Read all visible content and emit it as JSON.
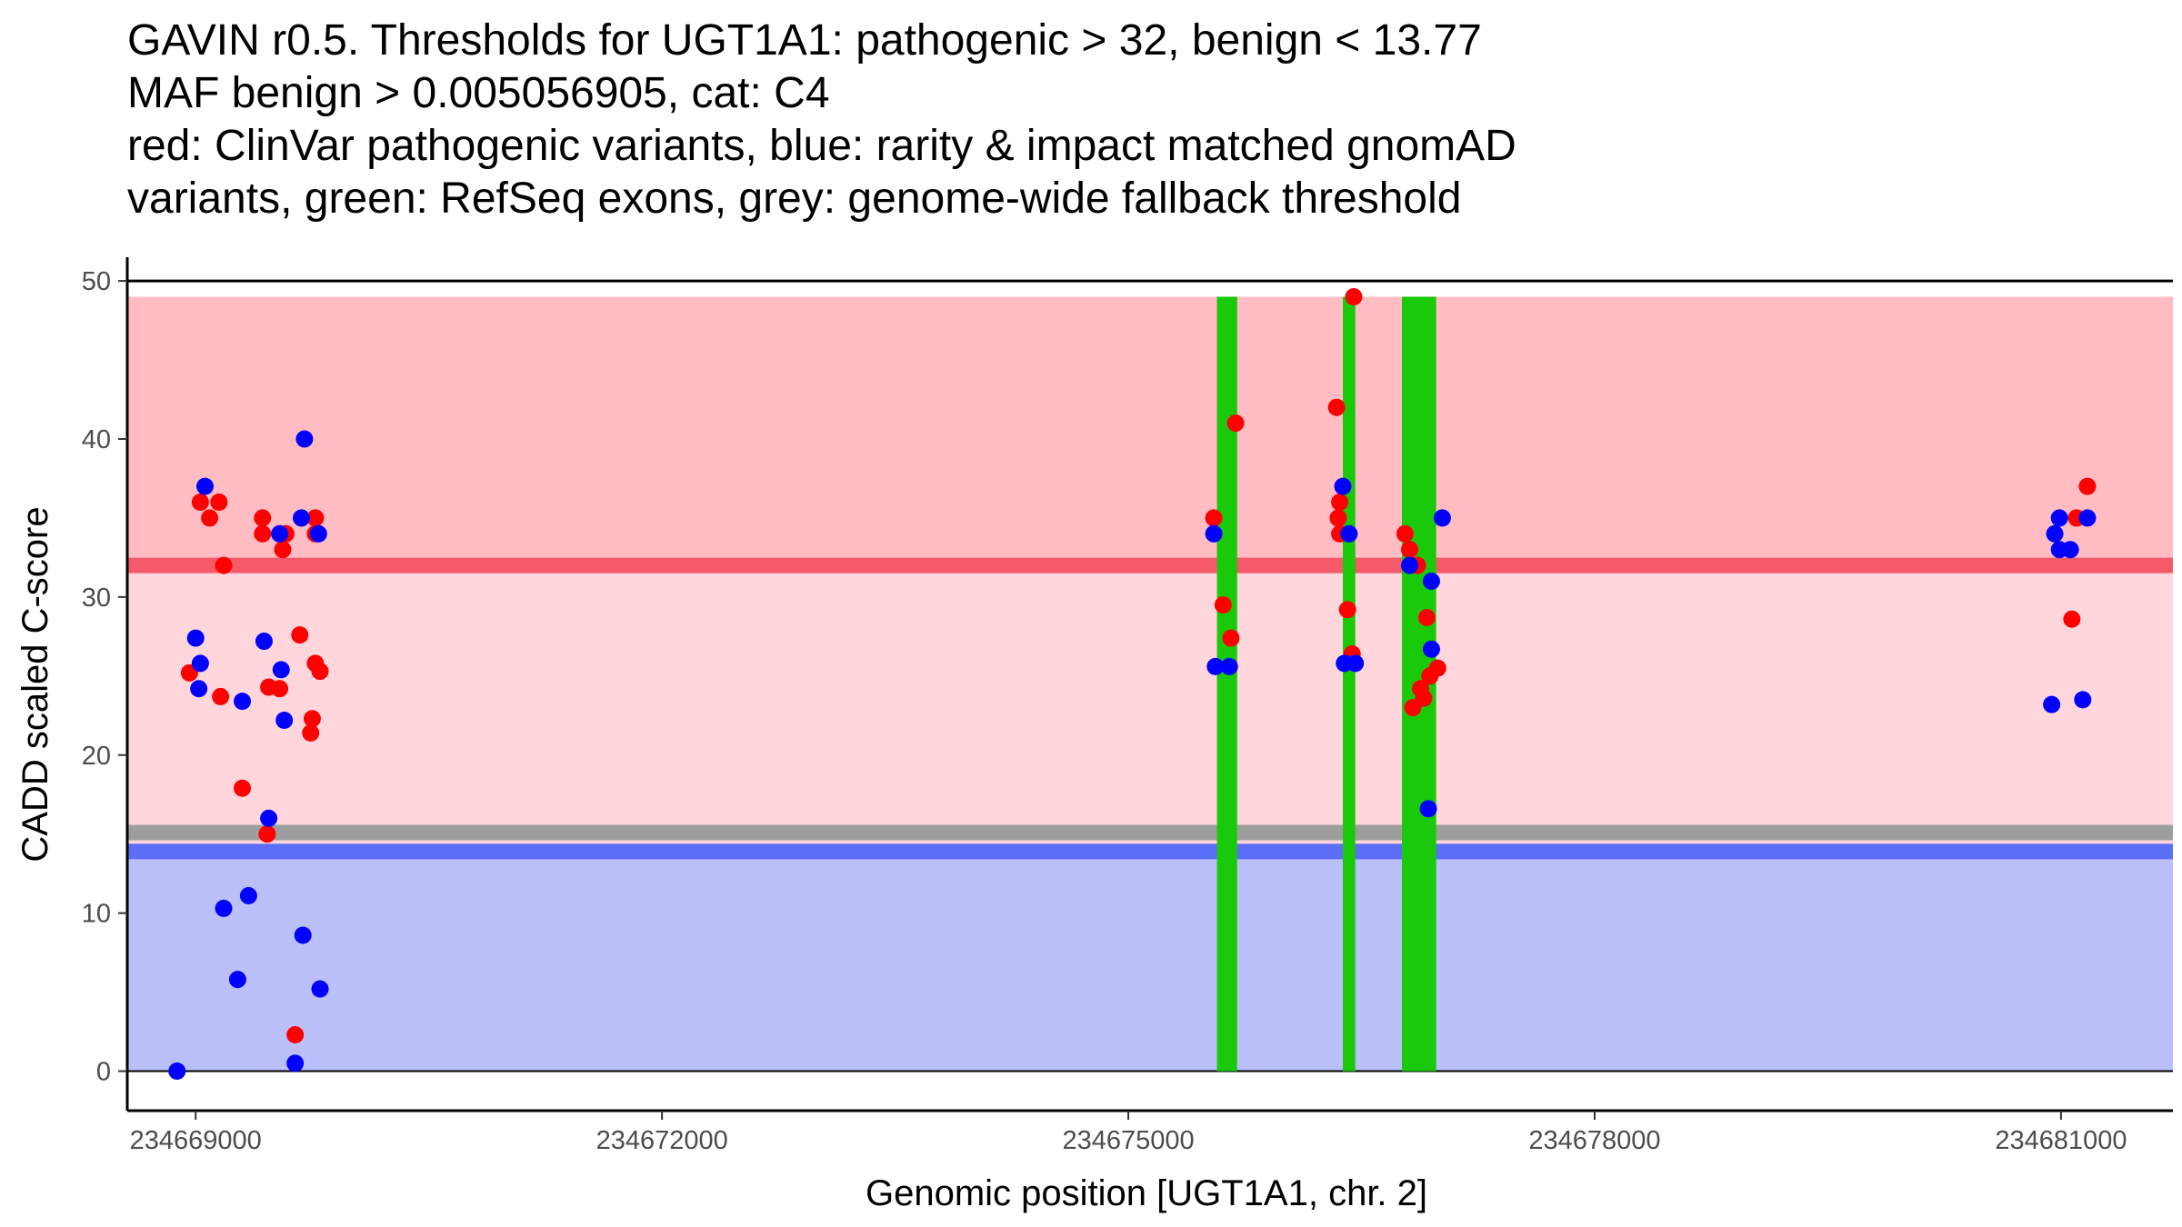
{
  "chart_data": {
    "type": "scatter",
    "title_lines": [
      "GAVIN r0.5. Thresholds for UGT1A1: pathogenic > 32, benign < 13.77",
      "MAF benign > 0.005056905, cat: C4",
      "red: ClinVar pathogenic variants, blue: rarity & impact matched gnomAD",
      "variants, green: RefSeq exons, grey: genome-wide fallback threshold"
    ],
    "xlabel": "Genomic position [UGT1A1, chr. 2]",
    "ylabel": "CADD scaled C-score",
    "xlim": [
      234668560,
      234681720
    ],
    "ylim": [
      -2.5,
      51.5
    ],
    "x_ticks": [
      234669000,
      234672000,
      234675000,
      234678000,
      234681000
    ],
    "x_tick_labels": [
      "234669000",
      "234672000",
      "234675000",
      "234678000",
      "234681000"
    ],
    "y_ticks": [
      0,
      10,
      20,
      30,
      40,
      50
    ],
    "y_tick_labels": [
      "0",
      "10",
      "20",
      "30",
      "40",
      "50"
    ],
    "colors": {
      "pathogenic_zone": "#ffbcc2",
      "middle_zone": "#ffd6dc",
      "benign_zone": "#bbc0fa",
      "pathogenic_line": "#f55a6b",
      "benign_line": "#5b6ef5",
      "fallback_line": "#9e9e9e",
      "exon": "#1ac90a",
      "clinvar": "#ff0000",
      "gnomad": "#0000ff"
    },
    "zones": {
      "top": 49,
      "pathogenic_threshold": 32,
      "benign_threshold": 13.77,
      "fallback_threshold": 15.1,
      "benign_line_center": 13.9,
      "bottom": 0
    },
    "exons": [
      {
        "start": 234675570,
        "end": 234675700
      },
      {
        "start": 234676380,
        "end": 234676460
      },
      {
        "start": 234676760,
        "end": 234676980
      }
    ],
    "exon_top": 49,
    "series": [
      {
        "name": "ClinVar pathogenic variants",
        "color_key": "clinvar",
        "points": [
          [
            234668960,
            25.2
          ],
          [
            234669030,
            36
          ],
          [
            234669090,
            35
          ],
          [
            234669150,
            36
          ],
          [
            234669160,
            23.7
          ],
          [
            234669180,
            32
          ],
          [
            234669300,
            17.9
          ],
          [
            234669430,
            35
          ],
          [
            234669430,
            34
          ],
          [
            234669460,
            15
          ],
          [
            234669470,
            24.3
          ],
          [
            234669540,
            24.2
          ],
          [
            234669560,
            33
          ],
          [
            234669580,
            34
          ],
          [
            234669640,
            2.3
          ],
          [
            234669670,
            27.6
          ],
          [
            234669740,
            21.4
          ],
          [
            234669750,
            22.3
          ],
          [
            234669770,
            35
          ],
          [
            234669770,
            34
          ],
          [
            234669770,
            25.8
          ],
          [
            234669800,
            25.3
          ],
          [
            234675550,
            35
          ],
          [
            234675610,
            29.5
          ],
          [
            234675660,
            27.4
          ],
          [
            234675690,
            41
          ],
          [
            234676340,
            42
          ],
          [
            234676350,
            35
          ],
          [
            234676360,
            36
          ],
          [
            234676360,
            34
          ],
          [
            234676410,
            29.2
          ],
          [
            234676440,
            26.4
          ],
          [
            234676450,
            49
          ],
          [
            234676780,
            34
          ],
          [
            234676810,
            33
          ],
          [
            234676830,
            23
          ],
          [
            234676860,
            32
          ],
          [
            234676880,
            24.2
          ],
          [
            234676900,
            23.6
          ],
          [
            234676920,
            28.7
          ],
          [
            234676940,
            25
          ],
          [
            234676990,
            25.5
          ],
          [
            234681070,
            28.6
          ],
          [
            234681100,
            35
          ],
          [
            234681170,
            37
          ]
        ]
      },
      {
        "name": "rarity & impact matched gnomAD variants",
        "color_key": "gnomad",
        "points": [
          [
            234668880,
            0
          ],
          [
            234669000,
            27.4
          ],
          [
            234669020,
            24.2
          ],
          [
            234669030,
            25.8
          ],
          [
            234669060,
            37
          ],
          [
            234669180,
            10.3
          ],
          [
            234669270,
            5.8
          ],
          [
            234669300,
            23.4
          ],
          [
            234669340,
            11.1
          ],
          [
            234669440,
            27.2
          ],
          [
            234669470,
            16
          ],
          [
            234669540,
            34
          ],
          [
            234669550,
            25.4
          ],
          [
            234669570,
            22.2
          ],
          [
            234669640,
            0.5
          ],
          [
            234669680,
            35
          ],
          [
            234669690,
            8.6
          ],
          [
            234669700,
            40
          ],
          [
            234669790,
            34
          ],
          [
            234669800,
            5.2
          ],
          [
            234675550,
            34
          ],
          [
            234675560,
            25.6
          ],
          [
            234675650,
            25.6
          ],
          [
            234676380,
            37
          ],
          [
            234676390,
            25.8
          ],
          [
            234676420,
            34
          ],
          [
            234676460,
            25.8
          ],
          [
            234676810,
            32
          ],
          [
            234676930,
            16.6
          ],
          [
            234676950,
            31
          ],
          [
            234676950,
            26.7
          ],
          [
            234677020,
            35
          ],
          [
            234680940,
            23.2
          ],
          [
            234680960,
            34
          ],
          [
            234680990,
            35
          ],
          [
            234680990,
            33
          ],
          [
            234681060,
            33
          ],
          [
            234681140,
            23.5
          ],
          [
            234681170,
            35
          ]
        ]
      }
    ]
  }
}
